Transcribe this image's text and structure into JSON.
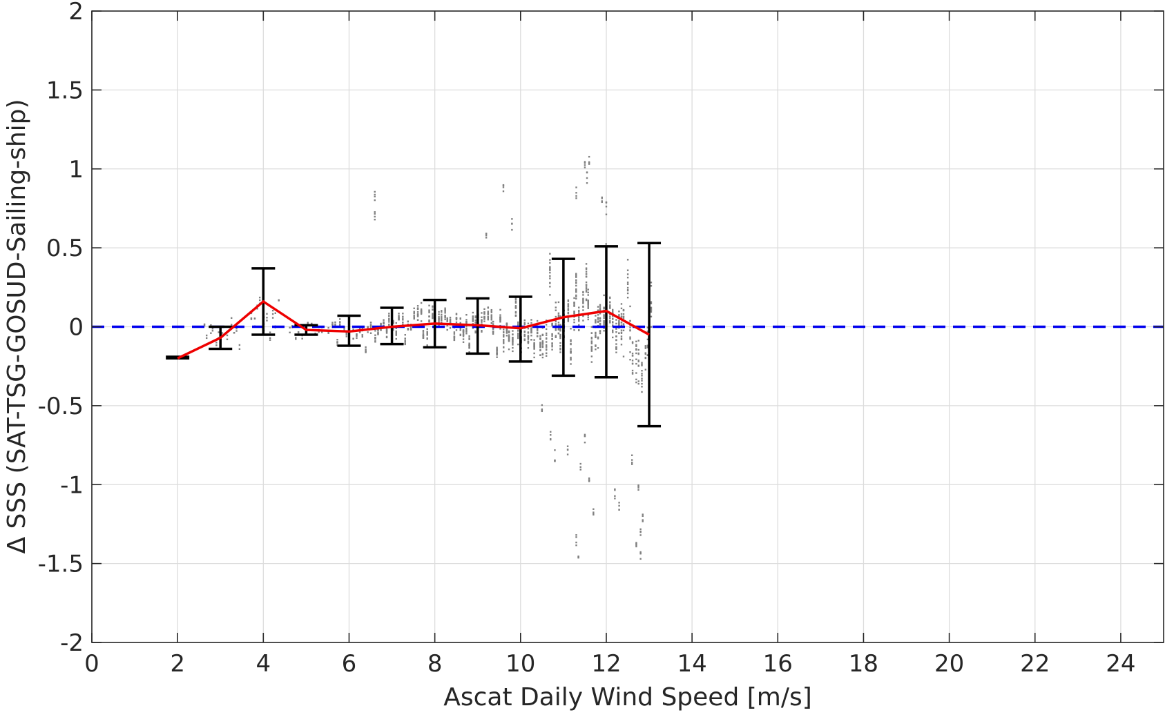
{
  "chart_data": {
    "type": "scatter",
    "title": "",
    "xlabel": "Ascat Daily Wind Speed [m/s]",
    "ylabel": "Δ SSS (SAT-TSG-GOSUD-Sailing-ship)",
    "xlim": [
      0,
      25
    ],
    "ylim": [
      -2,
      2
    ],
    "xticks": [
      0,
      2,
      4,
      6,
      8,
      10,
      12,
      14,
      16,
      18,
      20,
      22,
      24
    ],
    "xtick_labels": [
      "0",
      "2",
      "4",
      "6",
      "8",
      "10",
      "12",
      "14",
      "16",
      "18",
      "20",
      "22",
      "24"
    ],
    "yticks": [
      2,
      1.5,
      1,
      0.5,
      0,
      -0.5,
      -1,
      -1.5,
      -2
    ],
    "ytick_labels": [
      "2",
      "1.5",
      "1",
      "0.5",
      "0",
      "-0.5",
      "-1",
      "-1.5",
      "-2"
    ],
    "grid": true,
    "series": [
      {
        "kind": "errorbar",
        "color": "#000000",
        "x": [
          2,
          3,
          4,
          5,
          6,
          7,
          8,
          9,
          10,
          11,
          12,
          13
        ],
        "low": [
          -0.2,
          -0.14,
          -0.05,
          -0.05,
          -0.12,
          -0.11,
          -0.13,
          -0.17,
          -0.22,
          -0.31,
          -0.32,
          -0.63
        ],
        "high": [
          -0.19,
          0.0,
          0.37,
          0.01,
          0.07,
          0.12,
          0.17,
          0.18,
          0.19,
          0.43,
          0.51,
          0.53
        ]
      },
      {
        "kind": "line",
        "color": "#ee0000",
        "x": [
          2,
          3,
          4,
          5,
          6,
          7,
          8,
          9,
          10,
          11,
          12,
          13
        ],
        "y": [
          -0.2,
          -0.07,
          0.16,
          -0.02,
          -0.03,
          0.0,
          0.02,
          0.01,
          -0.01,
          0.06,
          0.1,
          -0.05
        ]
      },
      {
        "kind": "reference_line",
        "color": "#0000ee",
        "style": "dashed",
        "y": 0
      },
      {
        "kind": "scatter_bands",
        "color": "#808080",
        "bands": [
          {
            "x0": 2.6,
            "x1": 3.5,
            "center": -0.05,
            "spread": 0.07,
            "n": 18
          },
          {
            "x0": 3.7,
            "x1": 4.4,
            "center": 0.03,
            "spread": 0.12,
            "n": 26
          },
          {
            "x0": 4.6,
            "x1": 5.4,
            "center": -0.02,
            "spread": 0.04,
            "n": 20
          },
          {
            "x0": 5.5,
            "x1": 6.5,
            "center": -0.03,
            "spread": 0.06,
            "n": 70
          },
          {
            "x0": 6.5,
            "x1": 7.5,
            "center": 0.01,
            "spread": 0.08,
            "n": 110
          },
          {
            "x0": 7.5,
            "x1": 8.5,
            "center": 0.02,
            "spread": 0.1,
            "n": 160
          },
          {
            "x0": 8.5,
            "x1": 9.5,
            "center": 0.0,
            "spread": 0.12,
            "n": 190
          },
          {
            "x0": 9.5,
            "x1": 10.5,
            "center": -0.01,
            "spread": 0.15,
            "n": 210
          },
          {
            "x0": 10.5,
            "x1": 11.5,
            "center": 0.06,
            "spread": 0.22,
            "n": 230
          },
          {
            "x0": 11.5,
            "x1": 12.4,
            "center": 0.1,
            "spread": 0.26,
            "n": 220
          },
          {
            "x0": 12.4,
            "x1": 13.1,
            "center": -0.1,
            "spread": 0.3,
            "n": 110
          }
        ],
        "outliers": [
          [
            6.6,
            0.83
          ],
          [
            6.6,
            0.69
          ],
          [
            9.6,
            0.86
          ],
          [
            9.2,
            0.59
          ],
          [
            9.8,
            0.65
          ],
          [
            11.5,
            1.04
          ],
          [
            11.55,
            0.94
          ],
          [
            11.6,
            1.06
          ],
          [
            11.9,
            0.8
          ],
          [
            11.3,
            0.85
          ],
          [
            12.0,
            0.75
          ],
          [
            10.5,
            -0.5
          ],
          [
            10.7,
            -0.7
          ],
          [
            10.8,
            -0.82
          ],
          [
            11.1,
            -0.78
          ],
          [
            11.4,
            -0.89
          ],
          [
            11.5,
            -0.72
          ],
          [
            11.6,
            -0.95
          ],
          [
            11.3,
            -1.35
          ],
          [
            11.35,
            -1.43
          ],
          [
            11.7,
            -1.17
          ],
          [
            12.2,
            -1.06
          ],
          [
            12.3,
            -1.12
          ],
          [
            12.6,
            -0.85
          ],
          [
            12.75,
            -1.0
          ],
          [
            12.8,
            -1.3
          ],
          [
            12.8,
            -1.46
          ],
          [
            12.85,
            -1.2
          ],
          [
            12.7,
            -1.38
          ],
          [
            13.0,
            -0.6
          ]
        ]
      }
    ]
  }
}
